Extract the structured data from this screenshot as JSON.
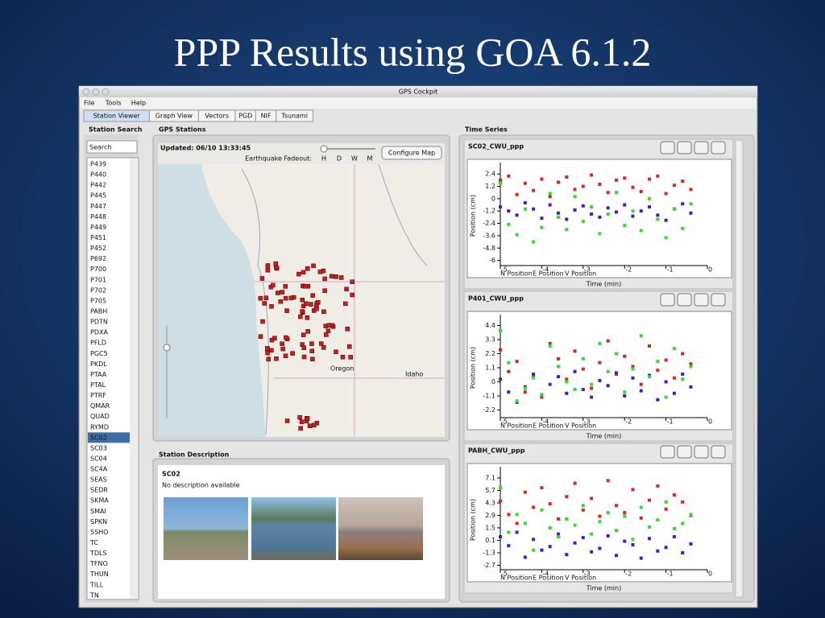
{
  "slide_title": "PPP Results using GOA 6.1.2",
  "window": {
    "title": "GPS Cockpit",
    "menu": [
      "File",
      "Tools",
      "Help"
    ],
    "tabs": [
      "Station Viewer",
      "Graph View",
      "Vectors",
      "PGD",
      "NIF",
      "Tsunami"
    ]
  },
  "station_search": {
    "label": "Station Search",
    "placeholder": "Search",
    "stations": [
      "P439",
      "P440",
      "P442",
      "P445",
      "P447",
      "P448",
      "P449",
      "P451",
      "P452",
      "P692",
      "P700",
      "P701",
      "P702",
      "P705",
      "PABH",
      "PDTN",
      "PDXA",
      "PFLD",
      "PGC5",
      "PKDL",
      "PTAA",
      "PTAL",
      "PTRF",
      "QMAR",
      "QUAD",
      "RYMD",
      "SC02",
      "SC03",
      "SC04",
      "SC4A",
      "SEAS",
      "SEDR",
      "SKMA",
      "SMAI",
      "SPKN",
      "SSHO",
      "TC",
      "TDLS",
      "TFNO",
      "THUN",
      "TILL",
      "TN"
    ],
    "selected_index": 26
  },
  "gps_stations": {
    "label": "GPS Stations",
    "updated": "Updated: 06/10 13:33:45",
    "fadeout_label": "Earthquake Fadeout:",
    "fadeout_options": [
      "H",
      "D",
      "W",
      "M"
    ],
    "button": "Configure Map",
    "map_labels": [
      "Oregon",
      "Idaho"
    ]
  },
  "station_description": {
    "label": "Station Description",
    "name": "SC02",
    "text": "No description available"
  },
  "time_series_label": "Time Series",
  "chart_data": [
    {
      "type": "scatter",
      "title": "SC02_CWU_ppp",
      "x_label": "Time (min)",
      "y_label": "Position (cm)",
      "xlim": [
        -5,
        0
      ],
      "xticks": [
        -5,
        -4,
        -3,
        -2,
        -1,
        0
      ],
      "ylim": [
        -6.5,
        3.2
      ],
      "yticks": [
        2.4,
        1.2,
        0,
        -1.2,
        -2.4,
        -3.6,
        -4.8,
        -6
      ],
      "x": [
        -5,
        -4.8,
        -4.6,
        -4.4,
        -4.2,
        -4,
        -3.8,
        -3.6,
        -3.4,
        -3.2,
        -3,
        -2.8,
        -2.6,
        -2.4,
        -2.2,
        -2,
        -1.8,
        -1.6,
        -1.4,
        -1.2,
        -1,
        -0.8,
        -0.6,
        -0.4
      ],
      "series": [
        {
          "name": "N Position",
          "color": "#e02424",
          "values": [
            1.8,
            2.2,
            0.4,
            1.5,
            0.8,
            1.9,
            0.2,
            1.6,
            2.1,
            0.9,
            1.2,
            2.3,
            1.4,
            0.6,
            1.8,
            2.0,
            1.1,
            0.7,
            1.9,
            2.2,
            0.5,
            1.3,
            1.7,
            0.9
          ]
        },
        {
          "name": "E Position",
          "color": "#3a22c8",
          "values": [
            -0.8,
            -1.2,
            -1.6,
            -0.4,
            -1.0,
            -1.9,
            -0.6,
            -1.4,
            -2.0,
            -1.1,
            -0.7,
            -1.5,
            -1.8,
            -0.9,
            -1.3,
            -0.6,
            -1.7,
            -1.2,
            -0.8,
            -1.6,
            -2.1,
            -1.0,
            -0.5,
            -1.4
          ]
        },
        {
          "name": "V Position",
          "color": "#2ee02e",
          "values": [
            1.5,
            -2.5,
            -3.5,
            -1.0,
            -4.2,
            -2.8,
            0.5,
            -1.8,
            -3.0,
            0.2,
            -2.2,
            -0.8,
            -3.4,
            -1.5,
            0.6,
            -2.6,
            -1.2,
            -3.1,
            0.0,
            -2.0,
            -3.8,
            -1.0,
            -2.9,
            -0.5
          ]
        }
      ]
    },
    {
      "type": "scatter",
      "title": "P401_CWU_ppp",
      "x_label": "Time (min)",
      "y_label": "Position (cm)",
      "xlim": [
        -5,
        0
      ],
      "xticks": [
        -5,
        -4,
        -3,
        -2,
        -1,
        0
      ],
      "ylim": [
        -2.8,
        5
      ],
      "yticks": [
        4.4,
        3.3,
        2.2,
        1.1,
        0,
        -1.1,
        -2.2
      ],
      "x": [
        -5,
        -4.8,
        -4.6,
        -4.4,
        -4.2,
        -4,
        -3.8,
        -3.6,
        -3.4,
        -3.2,
        -3,
        -2.8,
        -2.6,
        -2.4,
        -2.2,
        -2,
        -1.8,
        -1.6,
        -1.4,
        -1.2,
        -1,
        -0.8,
        -0.6,
        -0.4
      ],
      "series": [
        {
          "name": "N Position",
          "color": "#e02424",
          "values": [
            2.5,
            0.8,
            1.6,
            -0.8,
            0.4,
            -1.2,
            3.0,
            1.8,
            0.2,
            2.4,
            1.0,
            -0.5,
            1.5,
            3.2,
            0.6,
            2.0,
            1.2,
            -0.2,
            2.8,
            0.9,
            1.7,
            0.3,
            2.2,
            1.4
          ]
        },
        {
          "name": "E Position",
          "color": "#3a22c8",
          "values": [
            0.2,
            -0.8,
            -1.6,
            -0.4,
            0.6,
            -1.0,
            -0.2,
            0.4,
            -0.9,
            0.8,
            -0.6,
            -1.2,
            0.1,
            -0.3,
            0.7,
            -1.1,
            0.3,
            -0.7,
            0.5,
            -1.4,
            0.0,
            -0.9,
            0.6,
            -0.4
          ]
        },
        {
          "name": "V Position",
          "color": "#2ee02e",
          "values": [
            4.0,
            1.5,
            -1.5,
            -0.5,
            0.3,
            -1.0,
            2.8,
            1.2,
            0.0,
            -0.6,
            1.8,
            -0.2,
            3.0,
            0.8,
            2.2,
            -0.8,
            1.0,
            3.6,
            0.4,
            1.6,
            -1.2,
            2.6,
            0.2,
            1.2
          ]
        }
      ]
    },
    {
      "type": "scatter",
      "title": "PABH_CWU_ppp",
      "x_label": "Time (min)",
      "y_label": "Position (cm)",
      "xlim": [
        -5,
        0
      ],
      "xticks": [
        -5,
        -4,
        -3,
        -2,
        -1,
        0
      ],
      "ylim": [
        -3.2,
        8
      ],
      "yticks": [
        7.1,
        5.7,
        4.3,
        2.9,
        1.5,
        0.1,
        -1.3,
        -2.7
      ],
      "x": [
        -5,
        -4.8,
        -4.6,
        -4.4,
        -4.2,
        -4,
        -3.8,
        -3.6,
        -3.4,
        -3.2,
        -3,
        -2.8,
        -2.6,
        -2.4,
        -2.2,
        -2,
        -1.8,
        -1.6,
        -1.4,
        -1.2,
        -1,
        -0.8,
        -0.6,
        -0.4
      ],
      "series": [
        {
          "name": "N Position",
          "color": "#e02424",
          "values": [
            4.5,
            3.0,
            2.0,
            5.5,
            3.8,
            6.0,
            4.2,
            2.5,
            5.0,
            6.5,
            3.5,
            4.8,
            2.8,
            6.8,
            4.0,
            3.2,
            5.8,
            2.6,
            4.6,
            6.2,
            3.6,
            5.2,
            4.4,
            2.9
          ]
        },
        {
          "name": "E Position",
          "color": "#3a22c8",
          "values": [
            0.5,
            -0.5,
            1.0,
            -1.8,
            0.2,
            -1.0,
            -0.6,
            0.8,
            -1.5,
            -0.2,
            0.4,
            -1.2,
            -0.8,
            0.6,
            -1.6,
            0.0,
            -0.4,
            -1.9,
            0.3,
            -1.1,
            -0.7,
            0.5,
            -1.3,
            -0.3
          ]
        },
        {
          "name": "V Position",
          "color": "#2ee02e",
          "values": [
            6.0,
            1.0,
            3.0,
            2.0,
            -1.0,
            3.5,
            1.5,
            0.5,
            2.5,
            1.8,
            4.0,
            0.8,
            2.2,
            3.2,
            1.2,
            2.8,
            0.2,
            3.8,
            1.6,
            2.4,
            4.4,
            1.4,
            2.0,
            3.0
          ]
        }
      ]
    }
  ]
}
